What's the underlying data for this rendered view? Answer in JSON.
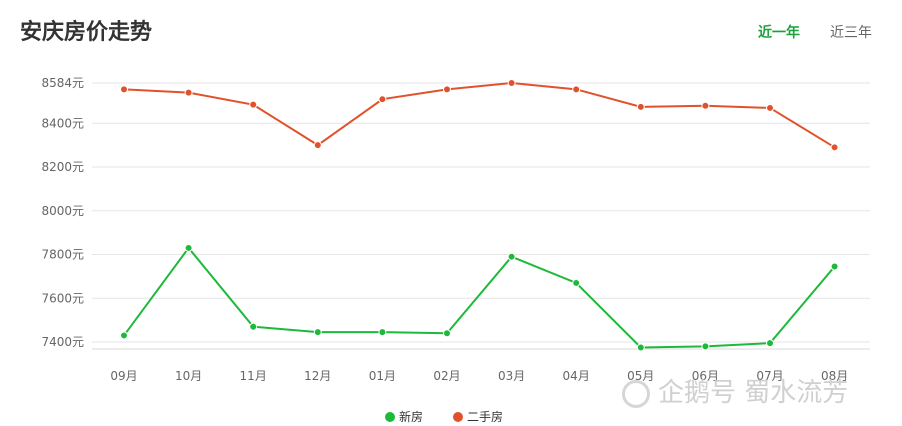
{
  "header": {
    "title": "安庆房价走势"
  },
  "tabs": [
    {
      "label": "近一年",
      "active": true
    },
    {
      "label": "近三年",
      "active": false
    }
  ],
  "watermark": "企鹅号 蜀水流芳",
  "colors": {
    "new": "#1db93a",
    "second": "#e0522b",
    "tab_active": "#1aa33b"
  },
  "chart_data": {
    "type": "line",
    "categories": [
      "09月",
      "10月",
      "11月",
      "12月",
      "01月",
      "02月",
      "03月",
      "04月",
      "05月",
      "06月",
      "07月",
      "08月"
    ],
    "y_ticks": [
      {
        "value": 7400,
        "label": "7400元"
      },
      {
        "value": 7600,
        "label": "7600元"
      },
      {
        "value": 7800,
        "label": "7800元"
      },
      {
        "value": 8000,
        "label": "8000元"
      },
      {
        "value": 8200,
        "label": "8200元"
      },
      {
        "value": 8400,
        "label": "8400元"
      },
      {
        "value": 8584,
        "label": "8584元"
      }
    ],
    "ylim": [
      7360,
      8584
    ],
    "grid": true,
    "legend_position": "bottom-center",
    "series": [
      {
        "name": "新房",
        "color": "#1db93a",
        "values": [
          7430,
          7830,
          7470,
          7445,
          7445,
          7440,
          7790,
          7670,
          7375,
          7380,
          7395,
          7745
        ]
      },
      {
        "name": "二手房",
        "color": "#e0522b",
        "values": [
          8555,
          8540,
          8485,
          8300,
          8510,
          8555,
          8584,
          8555,
          8475,
          8480,
          8470,
          8290
        ]
      }
    ]
  }
}
